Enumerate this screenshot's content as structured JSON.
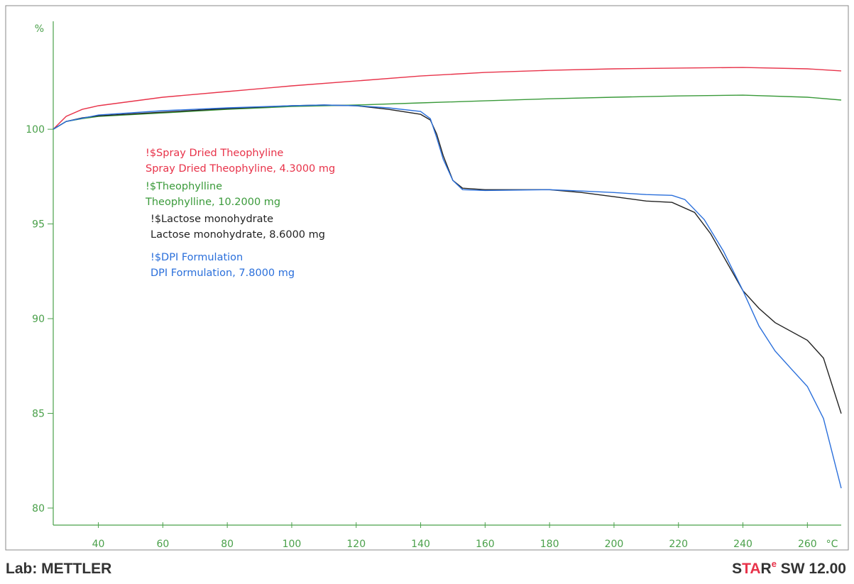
{
  "chart_data": {
    "type": "line",
    "y_label": "%",
    "x_label": "°C",
    "xlim": [
      26,
      270.5
    ],
    "ylim": [
      79.1,
      105.7
    ],
    "xticks": [
      40,
      60,
      80,
      100,
      120,
      140,
      160,
      180,
      200,
      220,
      240,
      260
    ],
    "yticks": [
      80,
      85,
      90,
      95,
      100
    ],
    "axis_color": "#4aa04a",
    "series": [
      {
        "name": "!$Spray Dried Theophyline",
        "label": "Spray Dried Theophyline, 4.3000 mg",
        "color": "#e8334a",
        "x": [
          26,
          30,
          35,
          40,
          60,
          80,
          100,
          120,
          140,
          160,
          180,
          200,
          220,
          240,
          260,
          270.5
        ],
        "values": [
          100,
          100.68,
          101.05,
          101.24,
          101.69,
          101.99,
          102.29,
          102.55,
          102.81,
          103.0,
          103.11,
          103.19,
          103.23,
          103.26,
          103.19,
          103.08
        ]
      },
      {
        "name": "!$Theophylline",
        "label": "Theophylline, 10.2000 mg",
        "color": "#3a9a3a",
        "x": [
          26,
          30,
          35,
          40,
          60,
          80,
          100,
          120,
          140,
          160,
          180,
          200,
          220,
          240,
          260,
          270.5
        ],
        "values": [
          100,
          100.41,
          100.56,
          100.68,
          100.86,
          101.05,
          101.2,
          101.28,
          101.39,
          101.5,
          101.61,
          101.69,
          101.76,
          101.8,
          101.69,
          101.54
        ]
      },
      {
        "name": "!$Lactose monohydrate",
        "label": "Lactose monohydrate, 8.6000 mg",
        "color": "#222222",
        "x": [
          26,
          30,
          35,
          40,
          60,
          80,
          100,
          110,
          120,
          130,
          140,
          143,
          145,
          147,
          150,
          153,
          160,
          180,
          190,
          200,
          210,
          218,
          225,
          230,
          235,
          240,
          245,
          250,
          260,
          265,
          270.5
        ],
        "values": [
          100,
          100.41,
          100.6,
          100.71,
          100.9,
          101.09,
          101.24,
          101.28,
          101.24,
          101.05,
          100.79,
          100.49,
          99.74,
          98.61,
          97.3,
          96.89,
          96.81,
          96.81,
          96.66,
          96.44,
          96.21,
          96.14,
          95.61,
          94.48,
          92.98,
          91.48,
          90.54,
          89.79,
          88.86,
          87.92,
          84.99
        ]
      },
      {
        "name": "!$DPI Formulation",
        "label": "DPI Formulation, 7.8000 mg",
        "color": "#2a6fdb",
        "x": [
          26,
          30,
          40,
          60,
          80,
          100,
          110,
          120,
          130,
          140,
          143,
          145,
          147,
          150,
          153,
          160,
          180,
          190,
          200,
          210,
          218,
          222,
          228,
          234,
          240,
          245,
          250,
          255,
          260,
          265,
          270.5
        ],
        "values": [
          100,
          100.41,
          100.75,
          100.98,
          101.13,
          101.24,
          101.28,
          101.24,
          101.13,
          100.94,
          100.56,
          99.55,
          98.42,
          97.3,
          96.81,
          96.77,
          96.81,
          96.74,
          96.66,
          96.55,
          96.51,
          96.29,
          95.23,
          93.55,
          91.48,
          89.61,
          88.29,
          87.35,
          86.42,
          84.73,
          81.05
        ]
      }
    ]
  },
  "footer": {
    "lab": "Lab: METTLER",
    "software": [
      "S",
      "TA",
      "R",
      "e",
      " SW 12.00"
    ]
  }
}
